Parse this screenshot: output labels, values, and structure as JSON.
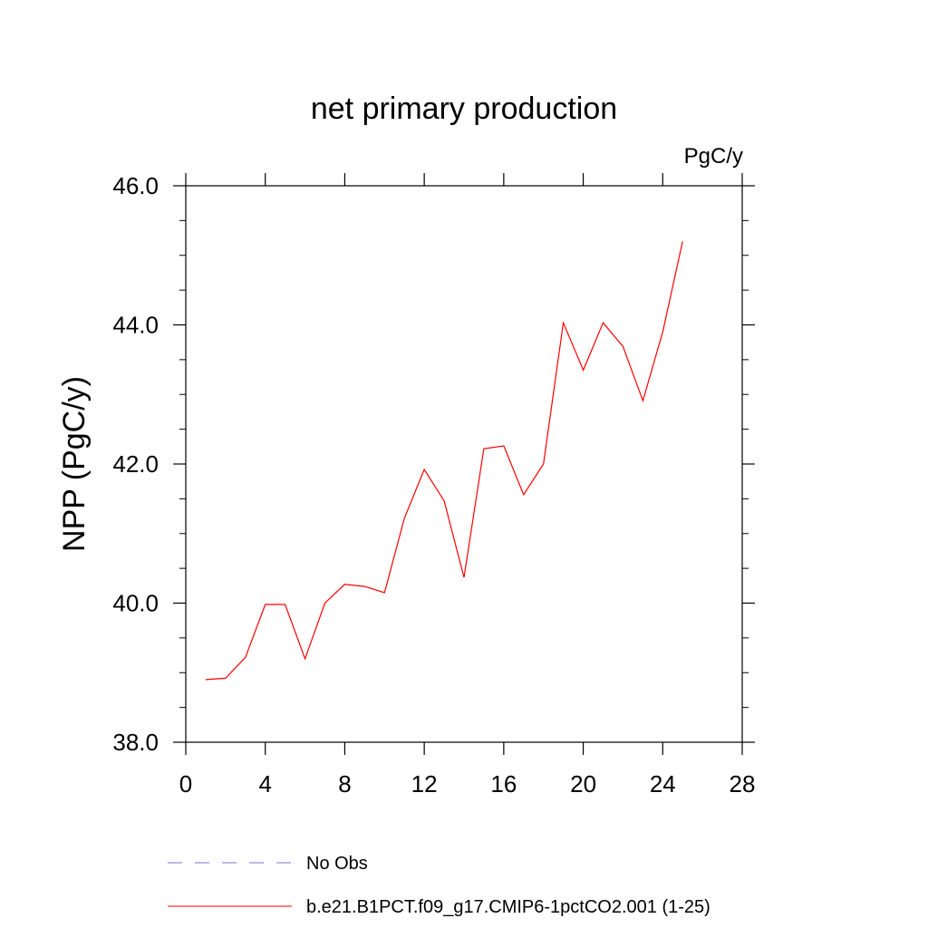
{
  "chart_data": {
    "type": "line",
    "title": "net primary production",
    "units": "PgC/y",
    "ylabel": "NPP  (PgC/y)",
    "xlabel": "",
    "xlim": [
      0,
      28
    ],
    "ylim": [
      38,
      46
    ],
    "x_ticks": [
      0,
      4,
      8,
      12,
      16,
      20,
      24,
      28
    ],
    "y_ticks": [
      38,
      40,
      42,
      44,
      46
    ],
    "x_tick_labels": [
      "0",
      "4",
      "8",
      "12",
      "16",
      "20",
      "24",
      "28"
    ],
    "y_tick_labels": [
      "38.0",
      "40.0",
      "42.0",
      "44.0",
      "46.0"
    ],
    "grid": false,
    "legend_position": "bottom",
    "series": [
      {
        "name": "No Obs",
        "color": "#7777cc",
        "style": "dashed",
        "x": [],
        "values": []
      },
      {
        "name": "b.e21.B1PCT.f09_g17.CMIP6-1pctCO2.001 (1-25)",
        "color": "#ff0000",
        "style": "solid",
        "x": [
          1,
          2,
          3,
          4,
          5,
          6,
          7,
          8,
          9,
          10,
          11,
          12,
          13,
          14,
          15,
          16,
          17,
          18,
          19,
          20,
          21,
          22,
          23,
          24,
          25
        ],
        "values": [
          38.9,
          38.92,
          39.22,
          39.98,
          39.98,
          39.2,
          40.0,
          40.27,
          40.24,
          40.15,
          41.22,
          41.92,
          41.47,
          40.37,
          42.22,
          42.26,
          41.56,
          42.0,
          44.03,
          43.35,
          44.03,
          43.69,
          42.91,
          43.9,
          45.2
        ]
      }
    ]
  }
}
